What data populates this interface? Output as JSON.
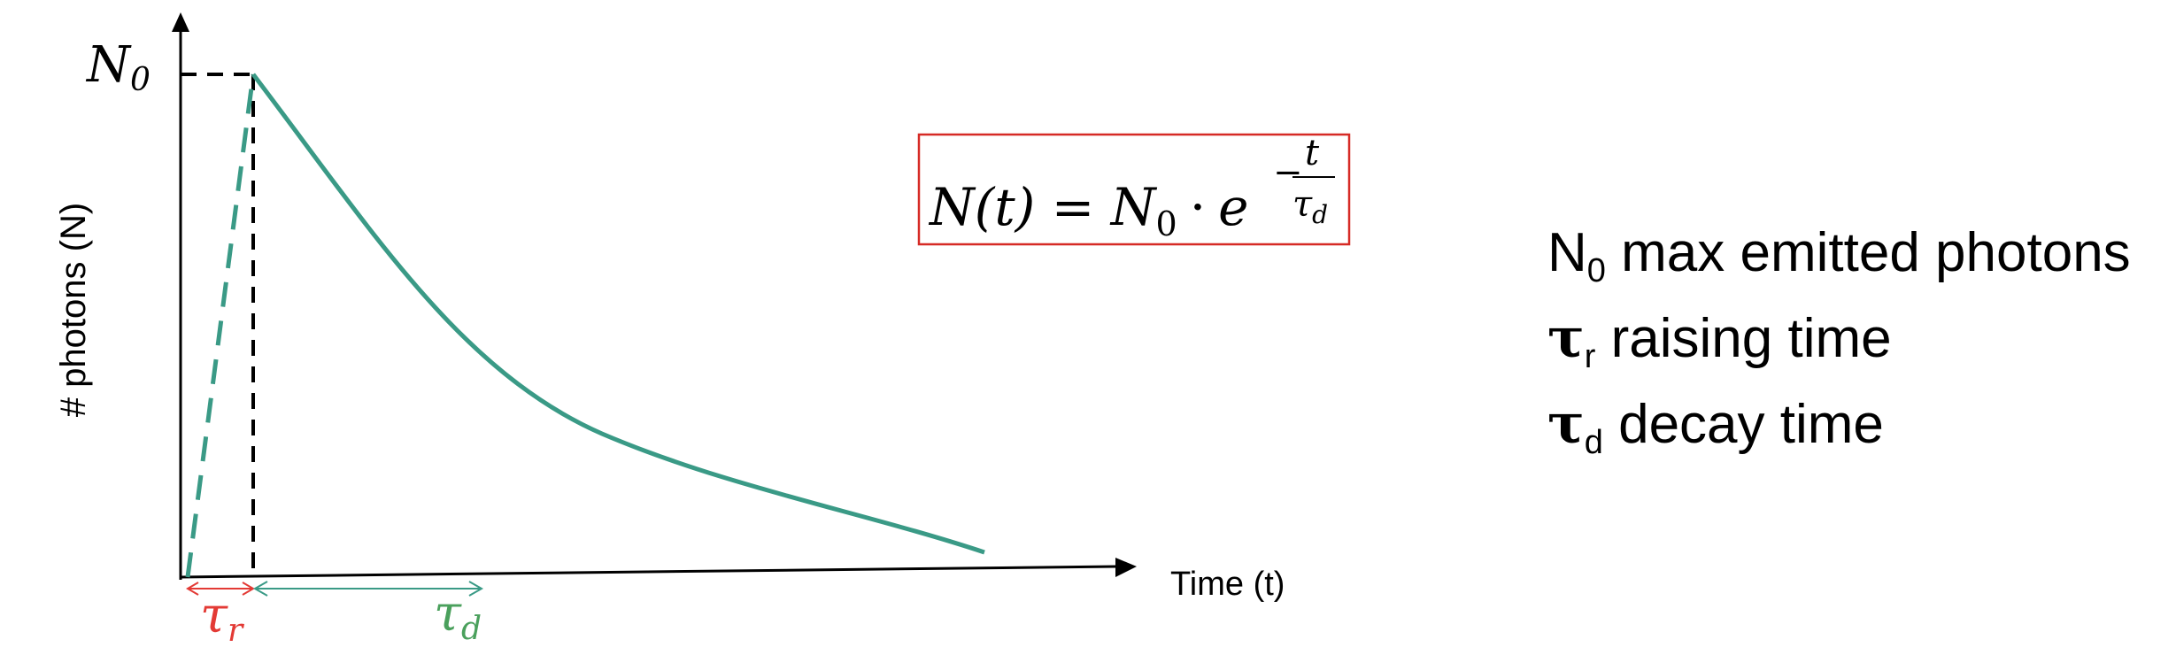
{
  "chart_data": {
    "type": "line",
    "ylabel": "# photons (N)",
    "xlabel": "Time (t)",
    "y_peak_label": "N",
    "y_peak_label_sub": "0",
    "rise_label": "τ",
    "rise_label_sub": "r",
    "decay_label": "τ",
    "decay_label_sub": "d",
    "colors": {
      "curve": "#3a9a86",
      "rise_marker": "#e33a35",
      "decay_marker": "#4aa05c",
      "axes": "#000000",
      "formula_box": "#d62a25"
    }
  },
  "formula": {
    "lhs": "N(t) = N",
    "lhs_sub": "0",
    "dot": "·",
    "base": "e",
    "exp_sign": "−",
    "exp_num": "t",
    "exp_den": "τ",
    "exp_den_sub": "d"
  },
  "legend": [
    {
      "symbol": "N",
      "sub": "0",
      "text": " max emitted photons"
    },
    {
      "symbol": "τ",
      "sub": "r",
      "text": " raising time"
    },
    {
      "symbol": "τ",
      "sub": "d",
      "text": " decay time"
    }
  ]
}
